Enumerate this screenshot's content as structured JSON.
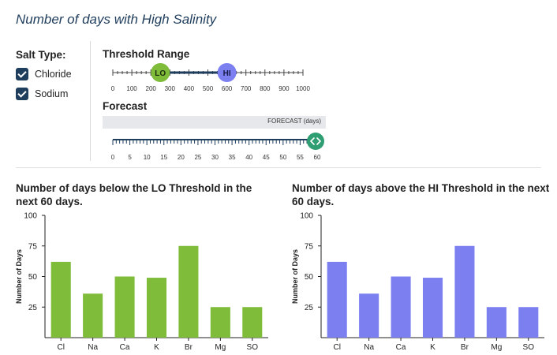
{
  "page": {
    "title": "Number of days with High Salinity"
  },
  "salt_type": {
    "label": "Salt Type:",
    "options": [
      {
        "label": "Chloride",
        "checked": true
      },
      {
        "label": "Sodium",
        "checked": true
      }
    ]
  },
  "threshold": {
    "label": "Threshold Range",
    "lo_label": "LO",
    "hi_label": "HI",
    "lo_value": 250,
    "hi_value": 600,
    "min": 0,
    "max": 1000,
    "ticks": [
      "0",
      "100",
      "200",
      "300",
      "400",
      "500",
      "600",
      "700",
      "800",
      "900",
      "1000"
    ],
    "lo_color": "#7fbc3a",
    "hi_color": "#7b7ff0",
    "track_color": "#1f3d5c"
  },
  "forecast": {
    "label": "Forecast",
    "header_text": "FORECAST (days)",
    "value": 60,
    "min": 0,
    "max": 60,
    "ticks": [
      "0",
      "5",
      "10",
      "15",
      "20",
      "25",
      "30",
      "35",
      "40",
      "45",
      "50",
      "55",
      "60"
    ],
    "handle_color": "#2f9e72",
    "handle_icon": "chevron-left-right-icon"
  },
  "charts": {
    "lo": {
      "title": "Number of days below the LO Threshold in the next 60 days."
    },
    "hi": {
      "title": "Number of days above the HI Threshold in the next 60 days."
    }
  },
  "chart_data": [
    {
      "type": "bar",
      "title": "Number of days below the LO Threshold in the next 60 days.",
      "xlabel": "",
      "ylabel": "Number of Days",
      "ylim": [
        0,
        100
      ],
      "yticks": [
        25,
        50,
        75,
        100
      ],
      "categories": [
        "Cl",
        "Na",
        "Ca",
        "K",
        "Br",
        "Mg",
        "SO"
      ],
      "values": [
        62,
        36,
        50,
        49,
        75,
        25,
        25
      ],
      "color": "#7fbc3a"
    },
    {
      "type": "bar",
      "title": "Number of days above the HI Threshold in the next 60 days.",
      "xlabel": "",
      "ylabel": "Number of Days",
      "ylim": [
        0,
        100
      ],
      "yticks": [
        25,
        50,
        75,
        100
      ],
      "categories": [
        "Cl",
        "Na",
        "Ca",
        "K",
        "Br",
        "Mg",
        "SO"
      ],
      "values": [
        62,
        36,
        50,
        49,
        75,
        25,
        25
      ],
      "color": "#7b7ff0"
    }
  ]
}
